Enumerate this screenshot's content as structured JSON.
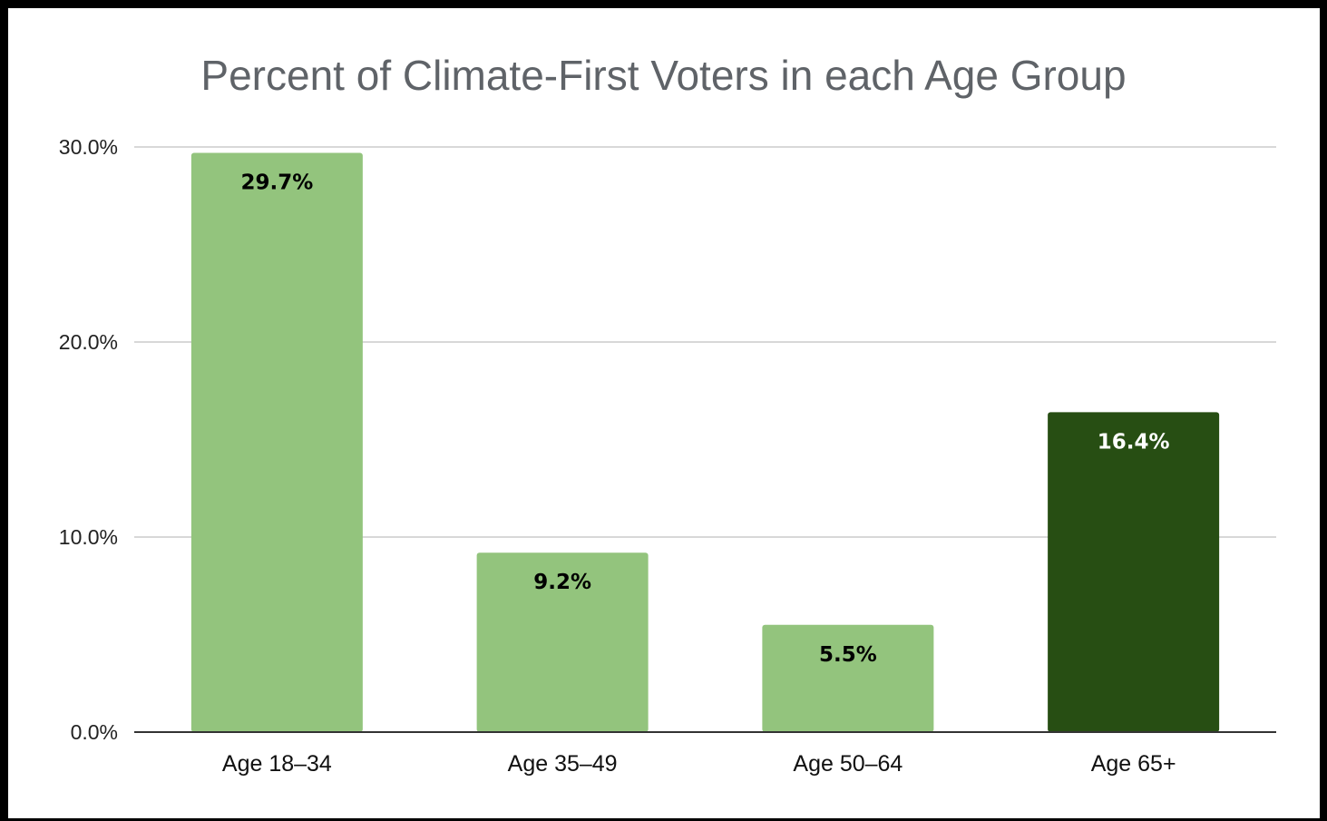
{
  "chart_data": {
    "type": "bar",
    "title": "Percent of Climate-First Voters in each Age Group",
    "xlabel": "",
    "ylabel": "",
    "categories": [
      "Age 18–34",
      "Age 35–49",
      "Age 50–64",
      "Age 65+"
    ],
    "values": [
      29.7,
      9.2,
      5.5,
      16.4
    ],
    "data_labels": [
      "29.7%",
      "9.2%",
      "5.5%",
      "16.4%"
    ],
    "ylim": [
      0,
      30
    ],
    "yticks": [
      0,
      10,
      20,
      30
    ],
    "ytick_labels": [
      "0.0%",
      "10.0%",
      "20.0%",
      "30.0%"
    ],
    "grid": true,
    "legend": "none",
    "colors": {
      "bars": [
        "#93c47d",
        "#93c47d",
        "#93c47d",
        "#274e13"
      ],
      "data_label_text": [
        "#000000",
        "#000000",
        "#000000",
        "#ffffff"
      ],
      "gridline": "#cccccc",
      "axis": "#333333",
      "title": "#5f6368"
    }
  }
}
